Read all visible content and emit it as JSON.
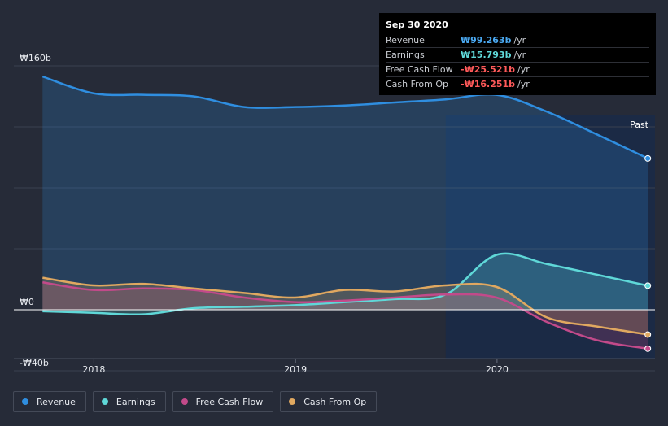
{
  "tooltip": {
    "date": "Sep 30 2020",
    "rows": [
      {
        "label": "Revenue",
        "value": "₩99.263b",
        "unit": "/yr",
        "color": "#4aa8f0"
      },
      {
        "label": "Earnings",
        "value": "₩15.793b",
        "unit": "/yr",
        "color": "#5fd8d8"
      },
      {
        "label": "Free Cash Flow",
        "value": "-₩25.521b",
        "unit": "/yr",
        "color": "#ff5a5a"
      },
      {
        "label": "Cash From Op",
        "value": "-₩16.251b",
        "unit": "/yr",
        "color": "#ff5a5a"
      }
    ]
  },
  "past_label": "Past",
  "colors": {
    "background": "#262b38",
    "revenue": "#2f8ee0",
    "earnings": "#5fd8d8",
    "fcf": "#c24a8a",
    "cfo": "#e0a860"
  },
  "legend": [
    {
      "label": "Revenue",
      "color": "#2f8ee0"
    },
    {
      "label": "Earnings",
      "color": "#5fd8d8"
    },
    {
      "label": "Free Cash Flow",
      "color": "#c24a8a"
    },
    {
      "label": "Cash From Op",
      "color": "#e0a860"
    }
  ],
  "chart_data": {
    "type": "line",
    "ylim": [
      -40,
      160
    ],
    "y_ticks": [
      {
        "value": 160,
        "label": "₩160b"
      },
      {
        "value": 0,
        "label": "₩0"
      },
      {
        "value": -40,
        "label": "-₩40b"
      }
    ],
    "x_ticks": [
      {
        "value": "2018-01-01",
        "label": "2018"
      },
      {
        "value": "2019-01-01",
        "label": "2019"
      },
      {
        "value": "2020-01-01",
        "label": "2020"
      }
    ],
    "x_range": [
      "2017-08-09",
      "2020-10-13"
    ],
    "highlight_start": "2019-09-30",
    "grid": true,
    "series": [
      {
        "name": "Revenue",
        "color": "#2f8ee0",
        "x": [
          "2017-09-30",
          "2017-12-31",
          "2018-03-31",
          "2018-06-30",
          "2018-09-30",
          "2018-12-31",
          "2019-03-31",
          "2019-06-30",
          "2019-09-30",
          "2019-12-31",
          "2020-03-31",
          "2020-06-30",
          "2020-09-30"
        ],
        "y": [
          153,
          142,
          141,
          140,
          133,
          133,
          134,
          136,
          138,
          141,
          130,
          115,
          99.263
        ]
      },
      {
        "name": "Earnings",
        "color": "#5fd8d8",
        "x": [
          "2017-09-30",
          "2017-12-31",
          "2018-03-31",
          "2018-06-30",
          "2018-09-30",
          "2018-12-31",
          "2019-03-31",
          "2019-06-30",
          "2019-09-30",
          "2019-12-31",
          "2020-03-31",
          "2020-06-30",
          "2020-09-30"
        ],
        "y": [
          -1,
          -2,
          -3,
          1,
          2,
          3,
          5,
          7,
          10,
          36,
          30,
          23,
          15.793
        ]
      },
      {
        "name": "Free Cash Flow",
        "color": "#c24a8a",
        "x": [
          "2017-09-30",
          "2017-12-31",
          "2018-03-31",
          "2018-06-30",
          "2018-09-30",
          "2018-12-31",
          "2019-03-31",
          "2019-06-30",
          "2019-09-30",
          "2019-12-31",
          "2020-03-31",
          "2020-06-30",
          "2020-09-30"
        ],
        "y": [
          18,
          13,
          14,
          13,
          8,
          5,
          6,
          8,
          10,
          8,
          -8,
          -20,
          -25.521
        ]
      },
      {
        "name": "Cash From Op",
        "color": "#e0a860",
        "x": [
          "2017-09-30",
          "2017-12-31",
          "2018-03-31",
          "2018-06-30",
          "2018-09-30",
          "2018-12-31",
          "2019-03-31",
          "2019-06-30",
          "2019-09-30",
          "2019-12-31",
          "2020-03-31",
          "2020-06-30",
          "2020-09-30"
        ],
        "y": [
          21,
          16,
          17,
          14,
          11,
          8,
          13,
          12,
          16,
          15,
          -5,
          -11,
          -16.251
        ]
      }
    ]
  }
}
